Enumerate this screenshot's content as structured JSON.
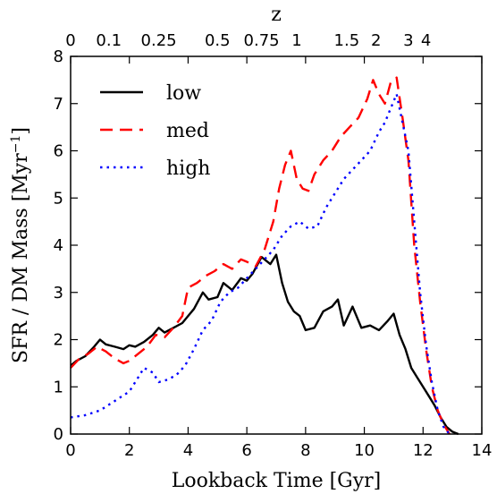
{
  "chart_data": {
    "type": "line",
    "xlabel": "Lookback Time [Gyr]",
    "ylabel": "SFR / DM Mass [Myr",
    "ylabel_sup": "−1",
    "ylabel_end": "]",
    "top_xlabel": "z",
    "xlim": [
      0,
      14
    ],
    "ylim": [
      0,
      8
    ],
    "x_ticks": [
      0,
      2,
      4,
      6,
      8,
      10,
      12,
      14
    ],
    "y_ticks": [
      0,
      1,
      2,
      3,
      4,
      5,
      6,
      7,
      8
    ],
    "top_ticks": [
      {
        "label": "0",
        "x": 0
      },
      {
        "label": "0.1",
        "x": 1.3
      },
      {
        "label": "0.25",
        "x": 3.0
      },
      {
        "label": "0.5",
        "x": 5.0
      },
      {
        "label": "0.75",
        "x": 6.5
      },
      {
        "label": "1",
        "x": 7.7
      },
      {
        "label": "1.5",
        "x": 9.4
      },
      {
        "label": "2",
        "x": 10.4
      },
      {
        "label": "3",
        "x": 11.5
      },
      {
        "label": "4",
        "x": 12.1
      }
    ],
    "legend_position": "top-left",
    "series": [
      {
        "name": "low",
        "color": "#000000",
        "style": "solid",
        "x": [
          0,
          0.2,
          0.5,
          0.8,
          1.0,
          1.2,
          1.5,
          1.8,
          2.0,
          2.2,
          2.5,
          2.8,
          3.0,
          3.2,
          3.5,
          3.8,
          4.0,
          4.2,
          4.5,
          4.7,
          5.0,
          5.2,
          5.5,
          5.8,
          6.0,
          6.2,
          6.5,
          6.8,
          7.0,
          7.2,
          7.4,
          7.6,
          7.8,
          8.0,
          8.3,
          8.6,
          8.9,
          9.1,
          9.3,
          9.6,
          9.9,
          10.2,
          10.5,
          10.8,
          11.0,
          11.2,
          11.4,
          11.6,
          11.8,
          12.0,
          12.2,
          12.4,
          12.6,
          12.8,
          13.0,
          13.2
        ],
        "y": [
          1.45,
          1.55,
          1.65,
          1.85,
          2.0,
          1.9,
          1.85,
          1.8,
          1.88,
          1.85,
          1.95,
          2.1,
          2.25,
          2.15,
          2.25,
          2.35,
          2.5,
          2.65,
          3.0,
          2.85,
          2.9,
          3.2,
          3.05,
          3.3,
          3.25,
          3.4,
          3.75,
          3.6,
          3.8,
          3.2,
          2.8,
          2.6,
          2.5,
          2.2,
          2.25,
          2.6,
          2.7,
          2.85,
          2.3,
          2.7,
          2.25,
          2.3,
          2.2,
          2.4,
          2.55,
          2.1,
          1.8,
          1.4,
          1.2,
          1.0,
          0.8,
          0.6,
          0.35,
          0.15,
          0.05,
          0.0
        ]
      },
      {
        "name": "med",
        "color": "#ff0000",
        "style": "dashed",
        "x": [
          0,
          0.3,
          0.6,
          0.9,
          1.2,
          1.5,
          1.8,
          2.0,
          2.3,
          2.6,
          2.9,
          3.2,
          3.5,
          3.8,
          4.0,
          4.3,
          4.6,
          4.9,
          5.2,
          5.5,
          5.8,
          6.0,
          6.3,
          6.6,
          6.9,
          7.1,
          7.3,
          7.5,
          7.7,
          7.9,
          8.1,
          8.3,
          8.6,
          8.9,
          9.2,
          9.5,
          9.8,
          10.1,
          10.3,
          10.5,
          10.7,
          10.9,
          11.1,
          11.3,
          11.5,
          11.7,
          11.9,
          12.1,
          12.3,
          12.5,
          12.7,
          12.9
        ],
        "y": [
          1.4,
          1.6,
          1.7,
          1.85,
          1.75,
          1.6,
          1.5,
          1.55,
          1.7,
          1.85,
          2.1,
          2.05,
          2.25,
          2.5,
          3.1,
          3.2,
          3.35,
          3.45,
          3.6,
          3.5,
          3.7,
          3.65,
          3.55,
          3.9,
          4.5,
          5.2,
          5.7,
          6.0,
          5.4,
          5.2,
          5.15,
          5.5,
          5.8,
          6.0,
          6.3,
          6.5,
          6.7,
          7.1,
          7.5,
          7.2,
          7.0,
          7.45,
          7.55,
          6.7,
          5.8,
          4.0,
          2.8,
          1.8,
          1.0,
          0.5,
          0.2,
          0.0
        ]
      },
      {
        "name": "high",
        "color": "#0000ff",
        "style": "dotted",
        "x": [
          0,
          0.5,
          1.0,
          1.5,
          2.0,
          2.3,
          2.5,
          2.8,
          3.0,
          3.3,
          3.6,
          3.9,
          4.2,
          4.5,
          4.8,
          5.1,
          5.4,
          5.7,
          6.0,
          6.3,
          6.6,
          6.9,
          7.2,
          7.5,
          7.8,
          8.1,
          8.4,
          8.7,
          9.0,
          9.3,
          9.6,
          9.9,
          10.2,
          10.5,
          10.7,
          10.9,
          11.1,
          11.3,
          11.5,
          11.7,
          11.9,
          12.1,
          12.3,
          12.5,
          12.7,
          12.9
        ],
        "y": [
          0.35,
          0.4,
          0.5,
          0.7,
          0.9,
          1.2,
          1.4,
          1.3,
          1.1,
          1.15,
          1.25,
          1.45,
          1.8,
          2.2,
          2.4,
          2.8,
          3.0,
          3.1,
          3.3,
          3.5,
          3.7,
          3.9,
          4.2,
          4.4,
          4.5,
          4.35,
          4.4,
          4.8,
          5.1,
          5.4,
          5.6,
          5.8,
          6.0,
          6.4,
          6.6,
          6.9,
          7.2,
          6.6,
          6.0,
          4.5,
          3.0,
          1.9,
          1.1,
          0.5,
          0.15,
          0.0
        ]
      }
    ]
  }
}
